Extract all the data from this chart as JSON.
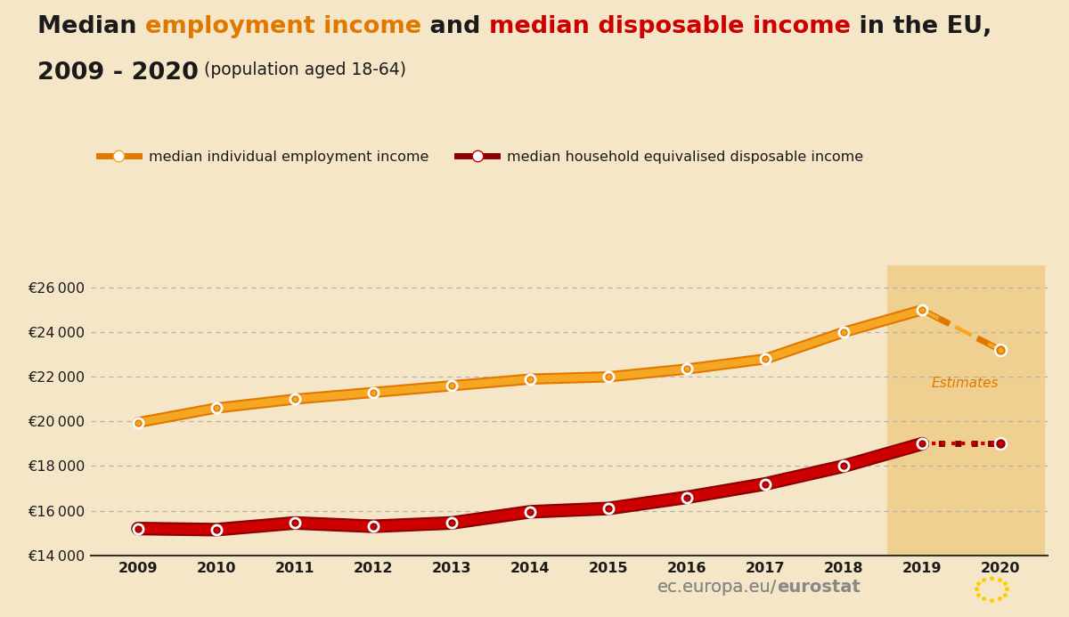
{
  "background_color": "#f5e6c8",
  "estimate_bg_color": "#f0d090",
  "orange_label": "median individual employment income",
  "red_label": "median household equivalised disposable income",
  "years": [
    2009,
    2010,
    2011,
    2012,
    2013,
    2014,
    2015,
    2016,
    2017,
    2018,
    2019,
    2020
  ],
  "orange_values": [
    19950,
    20600,
    21000,
    21300,
    21600,
    21900,
    22000,
    22350,
    22800,
    24000,
    25000,
    23200
  ],
  "red_values": [
    15200,
    15150,
    15450,
    15300,
    15450,
    15950,
    16100,
    16600,
    17200,
    18000,
    19000,
    19000
  ],
  "ylim_min": 14000,
  "ylim_max": 27000,
  "yticks": [
    14000,
    16000,
    18000,
    20000,
    22000,
    24000,
    26000
  ],
  "orange_color": "#f5a623",
  "orange_dark": "#e07800",
  "red_color": "#cc0000",
  "red_dark": "#8b0000",
  "estimates_label": "Estimates",
  "grid_color": "#b0b0b0",
  "text_color": "#1a1a1a",
  "footer_gray": "#888888"
}
